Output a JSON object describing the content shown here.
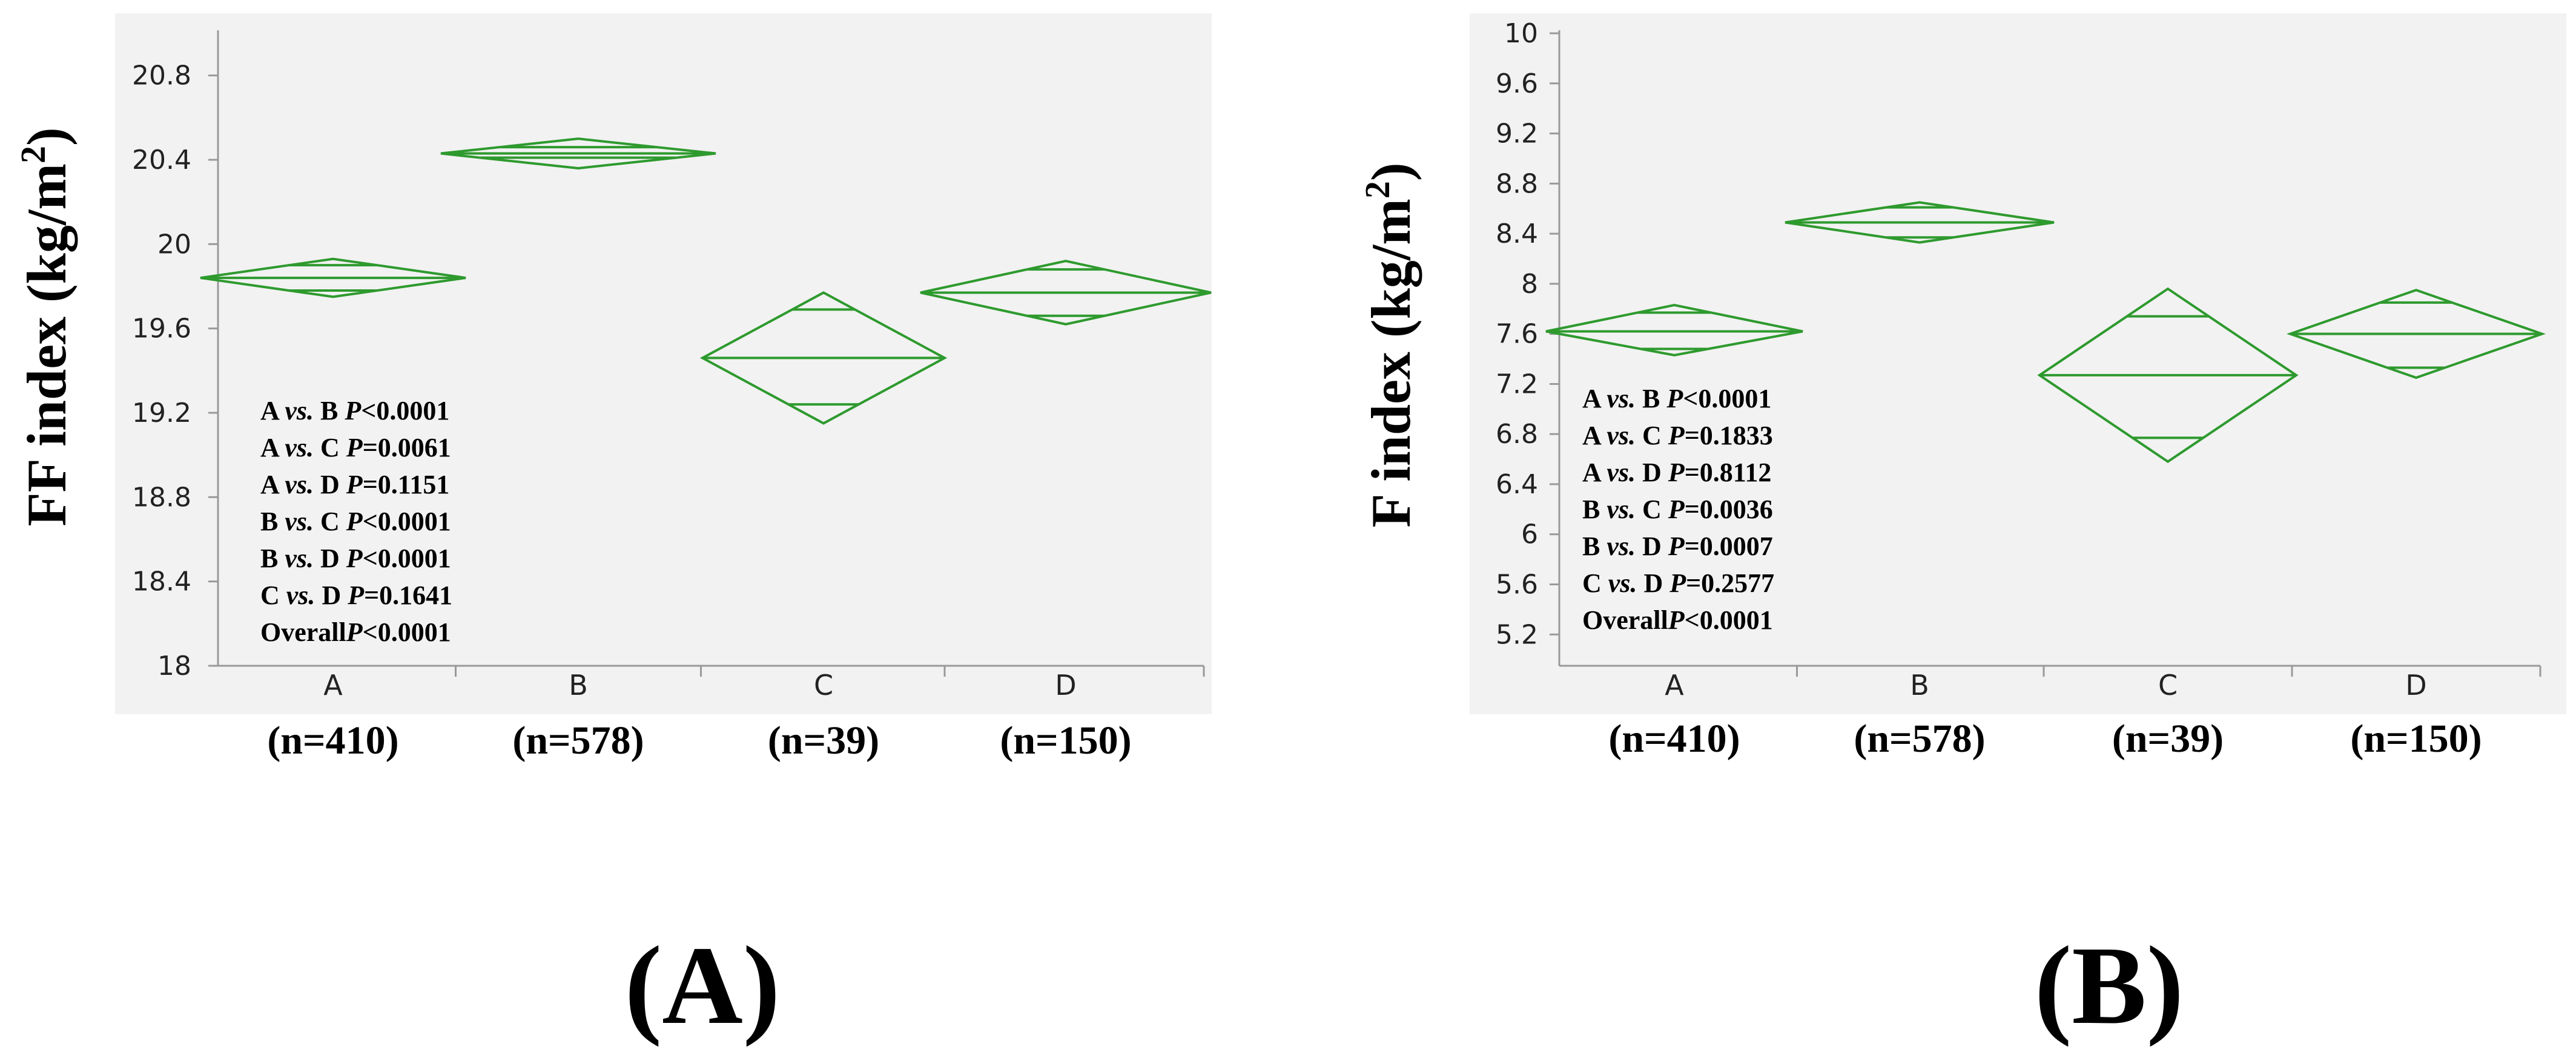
{
  "panels": [
    {
      "panel_label": "(A)",
      "ylabel_main": "FF index (kg/m",
      "ylabel_sup": "2",
      "ylabel_close": ")",
      "stats": [
        {
          "a": "A",
          "vs": "vs.",
          "b": "B",
          "p": "P",
          "val": "<0.0001"
        },
        {
          "a": "A",
          "vs": "vs.",
          "b": "C",
          "p": "P",
          "val": "=0.0061"
        },
        {
          "a": "A",
          "vs": "vs.",
          "b": "D",
          "p": "P",
          "val": "=0.1151"
        },
        {
          "a": "B",
          "vs": "vs.",
          "b": "C",
          "p": "P",
          "val": "<0.0001"
        },
        {
          "a": "B",
          "vs": "vs.",
          "b": "D",
          "p": "P",
          "val": "<0.0001"
        },
        {
          "a": "C",
          "vs": "vs.",
          "b": "D",
          "p": "P",
          "val": "=0.1641"
        }
      ],
      "overall": {
        "label": "Overall",
        "p": "P",
        "val": "<0.0001"
      }
    },
    {
      "panel_label": "(B)",
      "ylabel_main": "F index (kg/m",
      "ylabel_sup": "2",
      "ylabel_close": ")",
      "stats": [
        {
          "a": "A",
          "vs": "vs.",
          "b": "B",
          "p": "P",
          "val": "<0.0001"
        },
        {
          "a": "A",
          "vs": "vs.",
          "b": "C",
          "p": "P",
          "val": "=0.1833"
        },
        {
          "a": "A",
          "vs": "vs.",
          "b": "D",
          "p": "P",
          "val": "=0.8112"
        },
        {
          "a": "B",
          "vs": "vs.",
          "b": "C",
          "p": "P",
          "val": "=0.0036"
        },
        {
          "a": "B",
          "vs": "vs.",
          "b": "D",
          "p": "P",
          "val": "=0.0007"
        },
        {
          "a": "C",
          "vs": "vs.",
          "b": "D",
          "p": "P",
          "val": "=0.2577"
        }
      ],
      "overall": {
        "label": "Overall",
        "p": "P",
        "val": "<0.0001"
      }
    }
  ],
  "colors": {
    "diamond": "#2e9a2e",
    "plot_bg": "#f2f2f2",
    "axis": "#999999"
  },
  "chart_data": [
    {
      "type": "means-diamond",
      "ylabel": "FF index (kg/m2)",
      "ylim": [
        18,
        21.0
      ],
      "yticks": [
        18,
        18.4,
        18.8,
        19.2,
        19.6,
        20,
        20.4,
        20.8
      ],
      "ytick_labels": [
        "18",
        "18.4",
        "18.8",
        "19.2",
        "19.6",
        "20",
        "20.4",
        "20.8"
      ],
      "categories": [
        "A",
        "B",
        "C",
        "D"
      ],
      "n_labels": [
        "(n=410)",
        "(n=578)",
        "(n=39)",
        "(n=150)"
      ],
      "sizes": [
        410,
        578,
        39,
        150
      ],
      "means": [
        19.84,
        20.43,
        19.46,
        19.77
      ],
      "ci_lower": [
        19.75,
        20.36,
        19.15,
        19.62
      ],
      "ci_upper": [
        19.93,
        20.5,
        19.77,
        19.92
      ],
      "overlap_lower": [
        19.78,
        20.41,
        19.24,
        19.66
      ],
      "overlap_upper": [
        19.9,
        20.46,
        19.69,
        19.88
      ],
      "grid": false
    },
    {
      "type": "means-diamond",
      "ylabel": "F index (kg/m2)",
      "ylim": [
        4.95,
        10.0
      ],
      "yticks": [
        5.2,
        5.6,
        6,
        6.4,
        6.8,
        7.2,
        7.6,
        8,
        8.4,
        8.8,
        9.2,
        9.6,
        10
      ],
      "ytick_labels": [
        "5.2",
        "5.6",
        "6",
        "6.4",
        "6.8",
        "7.2",
        "7.6",
        "8",
        "8.4",
        "8.8",
        "9.2",
        "9.6",
        "10"
      ],
      "categories": [
        "A",
        "B",
        "C",
        "D"
      ],
      "n_labels": [
        "(n=410)",
        "(n=578)",
        "(n=39)",
        "(n=150)"
      ],
      "sizes": [
        410,
        578,
        39,
        150
      ],
      "means": [
        7.62,
        8.49,
        7.27,
        7.6
      ],
      "ci_lower": [
        7.43,
        8.33,
        6.58,
        7.25
      ],
      "ci_upper": [
        7.83,
        8.65,
        7.96,
        7.95
      ],
      "overlap_lower": [
        7.48,
        8.37,
        6.77,
        7.33
      ],
      "overlap_upper": [
        7.77,
        8.61,
        7.74,
        7.85
      ],
      "grid": false
    }
  ]
}
